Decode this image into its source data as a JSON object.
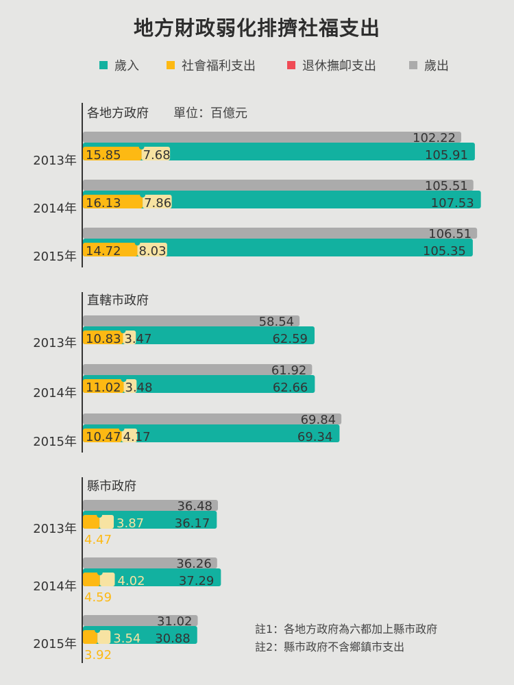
{
  "title": "地方財政弱化排擠社福支出",
  "legend": [
    {
      "label": "歲入",
      "color": "#12b1a0"
    },
    {
      "label": "社會福利支出",
      "color": "#fdb913"
    },
    {
      "label": "退休撫卹支出",
      "color": "#f04b55"
    },
    {
      "label": "歲出",
      "color": "#ababab"
    }
  ],
  "notes": [
    "註1：各地方政府為六都加上縣市政府",
    "註2：縣市政府不含鄉鎮市支出"
  ],
  "chart_data": [
    {
      "type": "bar",
      "title": "各地方政府",
      "unit": "單位：百億元",
      "categories": [
        "2013年",
        "2014年",
        "2015年"
      ],
      "series": [
        {
          "name": "歲出",
          "values": [
            102.22,
            105.51,
            106.51
          ]
        },
        {
          "name": "歲入",
          "values": [
            105.91,
            107.53,
            105.35
          ]
        },
        {
          "name": "社會福利支出",
          "values": [
            15.85,
            16.13,
            14.72
          ]
        },
        {
          "name": "退休撫卹支出",
          "values": [
            7.68,
            7.86,
            8.03
          ]
        }
      ]
    },
    {
      "type": "bar",
      "title": "直轄市政府",
      "categories": [
        "2013年",
        "2014年",
        "2015年"
      ],
      "series": [
        {
          "name": "歲出",
          "values": [
            58.54,
            61.92,
            69.84
          ]
        },
        {
          "name": "歲入",
          "values": [
            62.59,
            62.66,
            69.34
          ]
        },
        {
          "name": "社會福利支出",
          "values": [
            10.83,
            11.02,
            10.47
          ]
        },
        {
          "name": "退休撫卹支出",
          "values": [
            3.47,
            3.48,
            4.17
          ]
        }
      ]
    },
    {
      "type": "bar",
      "title": "縣市政府",
      "categories": [
        "2013年",
        "2014年",
        "2015年"
      ],
      "series": [
        {
          "name": "歲出",
          "values": [
            36.48,
            36.26,
            31.02
          ]
        },
        {
          "name": "歲入",
          "values": [
            36.17,
            37.29,
            30.88
          ]
        },
        {
          "name": "社會福利支出",
          "values": [
            4.47,
            4.59,
            3.92
          ]
        },
        {
          "name": "退休撫卹支出",
          "values": [
            3.87,
            4.02,
            3.54
          ]
        }
      ]
    }
  ]
}
